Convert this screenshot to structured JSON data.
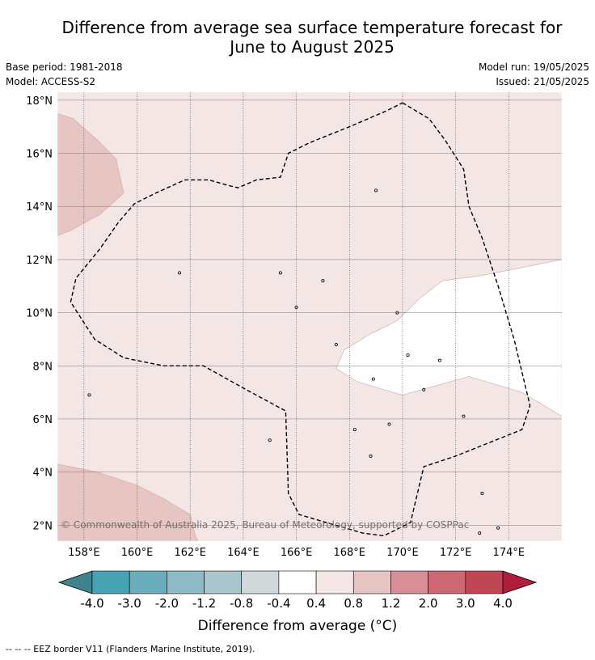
{
  "title": {
    "line1": "Difference from average sea surface temperature forecast for",
    "line2": "June to August 2025"
  },
  "meta": {
    "base_period": "Base period: 1981-2018",
    "model": "Model: ACCESS-S2",
    "model_run": "Model run: 19/05/2025",
    "issued": "Issued: 21/05/2025"
  },
  "map": {
    "lon_range": [
      157,
      176
    ],
    "lat_range": [
      1.4,
      18.3
    ],
    "lon_ticks": [
      158,
      160,
      162,
      164,
      166,
      168,
      170,
      172,
      174
    ],
    "lon_tick_labels": [
      "158°E",
      "160°E",
      "162°E",
      "164°E",
      "166°E",
      "168°E",
      "170°E",
      "172°E",
      "174°E"
    ],
    "lat_ticks": [
      2,
      4,
      6,
      8,
      10,
      12,
      14,
      16,
      18
    ],
    "lat_tick_labels": [
      "2°N",
      "4°N",
      "6°N",
      "8°N",
      "10°N",
      "12°N",
      "14°N",
      "16°N",
      "18°N"
    ],
    "background_color": "#f3e6e5",
    "copyright": "© Commonwealth of Australia 2025, Bureau of Meteorology, supported by COSPPac",
    "regions": [
      {
        "name": "0.8 to 1.2 anomaly (north-west)",
        "color": "#e6c5c2",
        "points": [
          [
            157,
            17.5
          ],
          [
            157.6,
            17.3
          ],
          [
            158.5,
            16.5
          ],
          [
            159.2,
            15.8
          ],
          [
            159.5,
            14.5
          ],
          [
            158.6,
            13.7
          ],
          [
            157.5,
            13.1
          ],
          [
            157,
            12.9
          ]
        ]
      },
      {
        "name": "0.8 to 1.2 anomaly (south-west)",
        "color": "#e6c5c2",
        "points": [
          [
            157,
            4.3
          ],
          [
            158.5,
            4.0
          ],
          [
            160,
            3.5
          ],
          [
            161,
            3.0
          ],
          [
            162,
            2.4
          ],
          [
            162.2,
            1.6
          ],
          [
            162.3,
            1.4
          ],
          [
            157,
            1.4
          ]
        ]
      },
      {
        "name": "-0.4 to 0.4 anomaly (east)",
        "color": "#ffffff",
        "points": [
          [
            176,
            12.0
          ],
          [
            173,
            11.4
          ],
          [
            171.5,
            11.2
          ],
          [
            170.6,
            10.5
          ],
          [
            169.8,
            9.7
          ],
          [
            168.8,
            9.2
          ],
          [
            167.8,
            8.6
          ],
          [
            167.5,
            7.9
          ],
          [
            168.3,
            7.4
          ],
          [
            170,
            6.9
          ],
          [
            172.5,
            7.6
          ],
          [
            174.5,
            7.0
          ],
          [
            176,
            6.1
          ]
        ]
      }
    ],
    "eez_border": [
      [
        170,
        17.9
      ],
      [
        171,
        17.3
      ],
      [
        171.6,
        16.5
      ],
      [
        172.3,
        15.4
      ],
      [
        172.5,
        14.0
      ],
      [
        173.0,
        12.8
      ],
      [
        173.6,
        11.0
      ],
      [
        174.2,
        9.0
      ],
      [
        174.8,
        6.5
      ],
      [
        174.5,
        5.6
      ],
      [
        172.0,
        4.6
      ],
      [
        170.8,
        4.2
      ],
      [
        170.3,
        2.1
      ],
      [
        169.3,
        1.6
      ],
      [
        168.5,
        1.7
      ],
      [
        166.1,
        2.4
      ],
      [
        165.7,
        3.2
      ],
      [
        165.6,
        6.3
      ],
      [
        164.3,
        7.0
      ],
      [
        162.5,
        8.0
      ],
      [
        161,
        8.0
      ],
      [
        159.5,
        8.3
      ],
      [
        158.4,
        9.0
      ],
      [
        157.5,
        10.4
      ],
      [
        157.7,
        11.3
      ],
      [
        158.6,
        12.4
      ],
      [
        159.3,
        13.4
      ],
      [
        159.9,
        14.1
      ],
      [
        160.7,
        14.5
      ],
      [
        161.8,
        15.0
      ],
      [
        162.7,
        15.0
      ],
      [
        163.4,
        14.8
      ],
      [
        163.8,
        14.7
      ],
      [
        164.5,
        15.0
      ],
      [
        165.4,
        15.1
      ],
      [
        165.7,
        16.0
      ],
      [
        166.5,
        16.4
      ],
      [
        168.0,
        17.0
      ],
      [
        169.4,
        17.6
      ]
    ],
    "islands": [
      [
        158.2,
        6.9
      ],
      [
        165,
        5.2
      ],
      [
        168.8,
        4.6
      ],
      [
        170.8,
        7.1
      ],
      [
        172.3,
        6.1
      ],
      [
        173.0,
        3.2
      ],
      [
        173.6,
        1.9
      ],
      [
        172.9,
        1.7
      ],
      [
        161.6,
        11.5
      ],
      [
        165.4,
        11.5
      ],
      [
        167.0,
        11.2
      ],
      [
        169.8,
        10.0
      ],
      [
        170.2,
        8.4
      ],
      [
        171.4,
        8.2
      ],
      [
        168.9,
        7.5
      ],
      [
        169.5,
        5.8
      ],
      [
        168.2,
        5.6
      ],
      [
        169.0,
        14.6
      ],
      [
        167.5,
        8.8
      ],
      [
        166.0,
        10.2
      ]
    ]
  },
  "colorbar": {
    "bins": [
      {
        "color": "#47a2b3"
      },
      {
        "color": "#6aaebd"
      },
      {
        "color": "#8ebac6"
      },
      {
        "color": "#a8c6cb"
      },
      {
        "color": "#d1d8db"
      },
      {
        "color": "#ffffff"
      },
      {
        "color": "#f3e6e5"
      },
      {
        "color": "#e6c5c2"
      },
      {
        "color": "#d88e96"
      },
      {
        "color": "#cb6874"
      },
      {
        "color": "#c14654"
      }
    ],
    "under_color": "#3e838e",
    "over_color": "#b21d3e",
    "tick_labels": [
      "-4.0",
      "-3.0",
      "-2.0",
      "-1.2",
      "-0.8",
      "-0.4",
      "0.4",
      "0.8",
      "1.2",
      "2.0",
      "3.0",
      "4.0"
    ],
    "label": "Difference from average (°C)"
  },
  "footer": "--  --  -- EEZ border V11 (Flanders Marine Institute, 2019)."
}
